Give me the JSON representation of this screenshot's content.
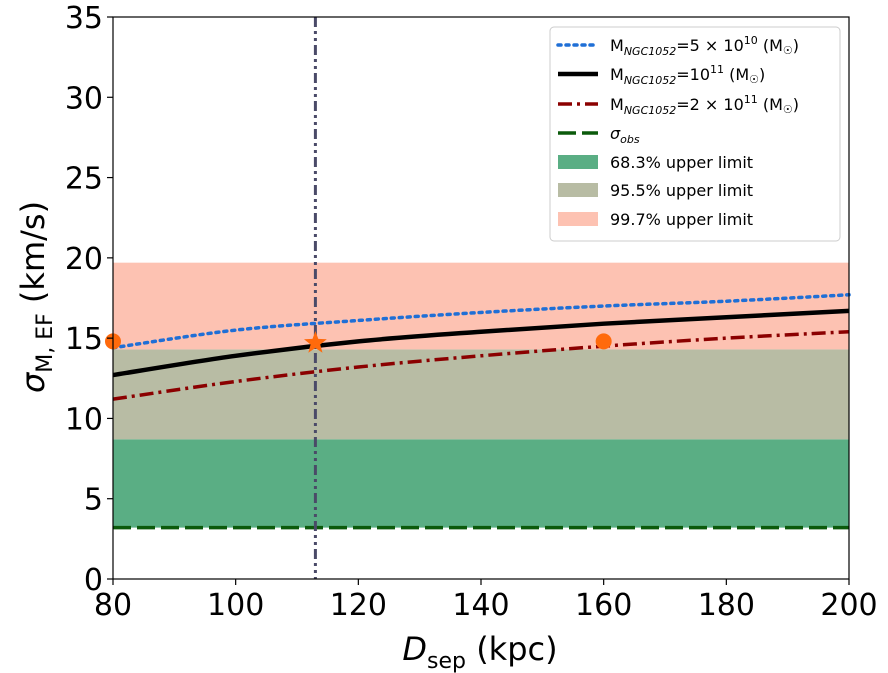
{
  "chart_data": {
    "type": "line",
    "xlabel": "D_sep (kpc)",
    "ylabel": "σ_M,EF (km/s)",
    "xlim": [
      80,
      200
    ],
    "ylim": [
      0,
      35
    ],
    "xticks": [
      80,
      100,
      120,
      140,
      160,
      180,
      200
    ],
    "yticks": [
      0,
      5,
      10,
      15,
      20,
      25,
      30,
      35
    ],
    "grid": false,
    "legend_position": "top-right",
    "bands": [
      {
        "label": "68.3% upper limit",
        "y0": 3.2,
        "y1": 8.7,
        "color": "#5aae84"
      },
      {
        "label": "95.5% upper limit",
        "y0": 8.7,
        "y1": 14.3,
        "color": "#b8bca4"
      },
      {
        "label": "99.7% upper limit",
        "y0": 14.3,
        "y1": 19.7,
        "color": "#fdc2b2"
      }
    ],
    "series": [
      {
        "name": "M_NGC1052=5×10^10 (M☉)",
        "style": "dotted",
        "color": "#1f6fd6",
        "x": [
          80,
          100,
          120,
          140,
          160,
          180,
          200
        ],
        "y": [
          14.4,
          15.5,
          16.1,
          16.6,
          17.0,
          17.3,
          17.7
        ]
      },
      {
        "name": "M_NGC1052=10^11 (M☉)",
        "style": "solid",
        "color": "#000000",
        "x": [
          80,
          100,
          120,
          140,
          160,
          180,
          200
        ],
        "y": [
          12.7,
          13.9,
          14.8,
          15.4,
          15.9,
          16.3,
          16.7
        ]
      },
      {
        "name": "M_NGC1052=2×10^11 (M☉)",
        "style": "dashdot",
        "color": "#8b0000",
        "x": [
          80,
          100,
          120,
          140,
          160,
          180,
          200
        ],
        "y": [
          11.2,
          12.3,
          13.2,
          13.9,
          14.5,
          15.0,
          15.4
        ]
      },
      {
        "name": "σ_obs",
        "style": "dashed",
        "color": "#0b5a0b",
        "x": [
          80,
          200
        ],
        "y": [
          3.2,
          3.2
        ]
      }
    ],
    "vline": {
      "x": 113,
      "style": "dashdotdot",
      "color": "#4a4a68"
    },
    "markers": [
      {
        "shape": "circle",
        "x": 80,
        "y": 14.8,
        "color": "#ff6a0c"
      },
      {
        "shape": "star",
        "x": 113,
        "y": 14.7,
        "color": "#ff6a0c"
      },
      {
        "shape": "circle",
        "x": 160,
        "y": 14.8,
        "color": "#ff6a0c"
      }
    ]
  }
}
